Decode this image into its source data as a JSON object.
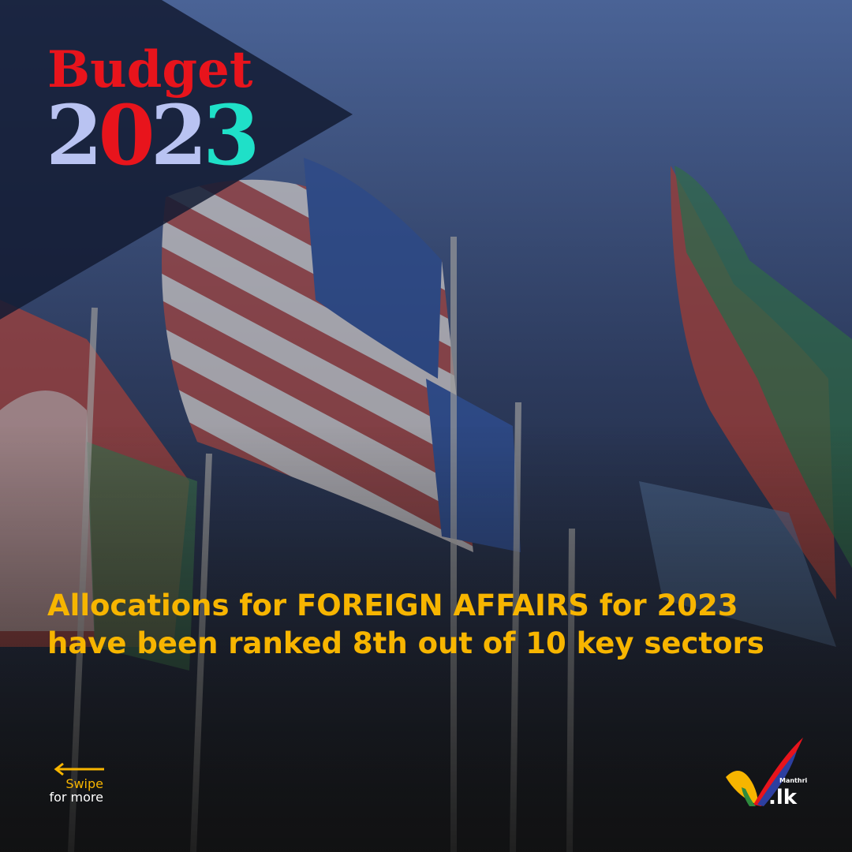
{
  "header": {
    "title": "Budget",
    "year": "2023"
  },
  "headline": {
    "lines": [
      "Allocations for FOREIGN AFFAIRS for 2023",
      "have been ranked 8th out of 10 key sectors"
    ]
  },
  "swipe": {
    "lines": [
      "Swipe",
      "for more"
    ]
  },
  "logo": {
    "name": "Manthri",
    "domain": ".lk"
  }
}
